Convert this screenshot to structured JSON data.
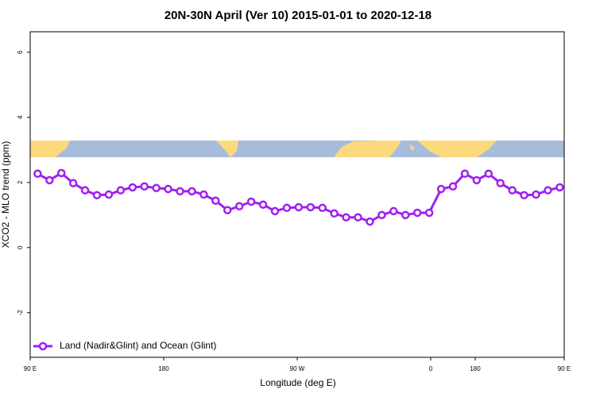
{
  "chart_data": {
    "type": "line",
    "title": "20N-30N April (Ver 10)   2015-01-01 to 2020-12-18",
    "x_label": "Longitude (deg E)",
    "y_label": "XCO2 - MLO trend (ppm)",
    "x": [
      95,
      103,
      111,
      119,
      127,
      135,
      143,
      151,
      159,
      167,
      175,
      183,
      191,
      199,
      207,
      215,
      223,
      231,
      239,
      247,
      255,
      263,
      271,
      279,
      287,
      295,
      303,
      311,
      319,
      327,
      335,
      343,
      351,
      359,
      367,
      375,
      383,
      391,
      399,
      407,
      415,
      423,
      431,
      439,
      447
    ],
    "series": [
      {
        "name": "Land (Nadir&Glint) and Ocean (Glint)",
        "color": "#a020f0",
        "values": [
          2.27,
          2.07,
          2.29,
          1.98,
          1.76,
          1.61,
          1.63,
          1.76,
          1.85,
          1.88,
          1.83,
          1.8,
          1.73,
          1.73,
          1.63,
          1.44,
          1.15,
          1.27,
          1.41,
          1.32,
          1.12,
          1.22,
          1.24,
          1.24,
          1.22,
          1.05,
          0.93,
          0.93,
          0.8,
          1.0,
          1.12,
          1.0,
          1.07,
          1.07,
          1.8,
          1.88,
          2.27,
          2.07,
          2.27,
          1.98,
          1.76,
          1.61,
          1.63,
          1.76,
          1.85
        ]
      }
    ],
    "xlim": [
      90,
      450
    ],
    "xticks": [
      {
        "value": 90,
        "label": "90 E"
      },
      180,
      {
        "value": 270,
        "label": "90 W"
      },
      {
        "value": 360,
        "label": "0"
      },
      {
        "value": 450,
        "label": "90 E"
      },
      {
        "value": 540,
        "label": "180"
      }
    ],
    "ylim": [
      -3.37,
      6.63
    ],
    "yticks": [
      -2,
      0,
      2,
      4,
      6
    ],
    "legend": "bottomleft"
  }
}
